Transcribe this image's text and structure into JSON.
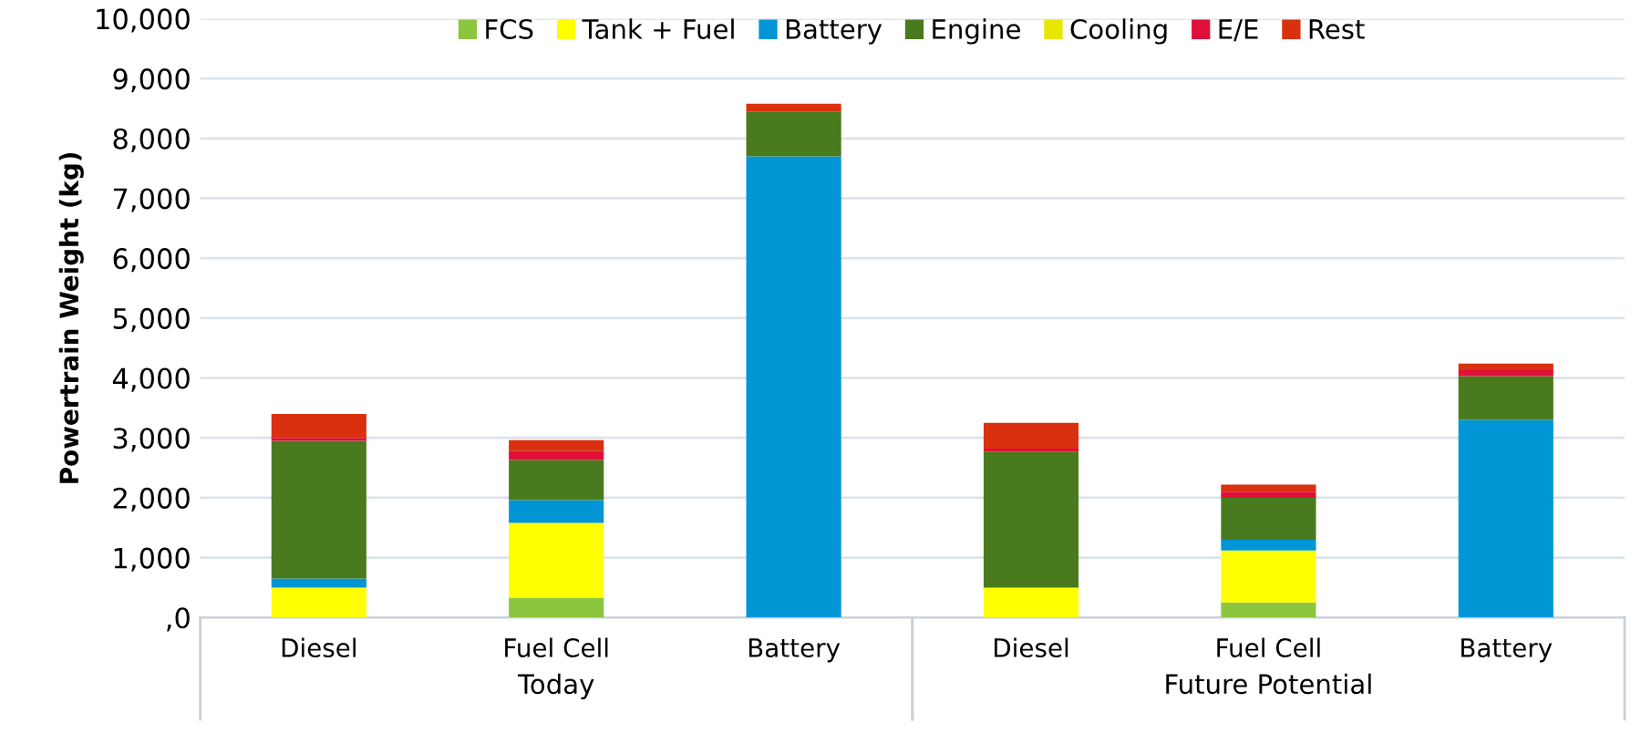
{
  "chart_data": {
    "type": "bar",
    "stacked": true,
    "ylabel": "Powertrain Weight (kg)",
    "categories": [
      "Diesel",
      "Fuel Cell",
      "Battery",
      "Diesel",
      "Fuel Cell",
      "Battery"
    ],
    "series": [
      {
        "name": "FCS",
        "color": "#8cc63f",
        "values": [
          0,
          330,
          0,
          0,
          250,
          0
        ]
      },
      {
        "name": "Tank + Fuel",
        "color": "#ffff00",
        "values": [
          500,
          1250,
          0,
          500,
          870,
          0
        ]
      },
      {
        "name": "Battery",
        "color": "#0096d6",
        "values": [
          150,
          380,
          7700,
          0,
          180,
          3300
        ]
      },
      {
        "name": "Engine",
        "color": "#4a7a1e",
        "values": [
          2300,
          670,
          750,
          2270,
          700,
          730
        ]
      },
      {
        "name": "Cooling",
        "color": "#e6e600",
        "values": [
          0,
          0,
          0,
          0,
          0,
          0
        ]
      },
      {
        "name": "E/E",
        "color": "#e0103a",
        "values": [
          50,
          150,
          0,
          50,
          100,
          100
        ]
      },
      {
        "name": "Rest",
        "color": "#d9300f",
        "values": [
          400,
          180,
          130,
          430,
          120,
          110
        ]
      }
    ],
    "ylim": [
      0,
      10000
    ],
    "yticks": [
      {
        "value": 0,
        "label": ",0"
      },
      {
        "value": 1000,
        "label": "1,000"
      },
      {
        "value": 2000,
        "label": "2,000"
      },
      {
        "value": 3000,
        "label": "3,000"
      },
      {
        "value": 4000,
        "label": "4,000"
      },
      {
        "value": 5000,
        "label": "5,000"
      },
      {
        "value": 6000,
        "label": "6,000"
      },
      {
        "value": 7000,
        "label": "7,000"
      },
      {
        "value": 8000,
        "label": "8,000"
      },
      {
        "value": 9000,
        "label": "9,000"
      },
      {
        "value": 10000,
        "label": "10,000"
      }
    ],
    "grid": "y",
    "legend": "top",
    "annotations": [
      "Today",
      "Future Potential"
    ]
  }
}
